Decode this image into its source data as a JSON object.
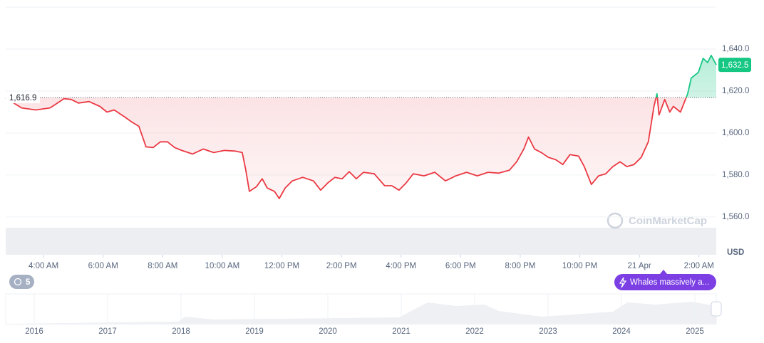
{
  "chart_data": {
    "type": "line",
    "x": [
      2.73,
      3.26,
      3.74,
      4.22,
      4.69,
      4.93,
      5.17,
      5.53,
      5.89,
      6.13,
      6.37,
      6.73,
      6.97,
      7.2,
      7.44,
      7.68,
      7.92,
      8.16,
      8.4,
      8.64,
      9.0,
      9.36,
      9.71,
      10.07,
      10.43,
      10.67,
      10.79,
      10.91,
      11.15,
      11.34,
      11.51,
      11.75,
      11.91,
      12.11,
      12.35,
      12.7,
      13.06,
      13.3,
      13.54,
      13.78,
      14.02,
      14.26,
      14.5,
      14.74,
      15.1,
      15.45,
      15.69,
      15.93,
      16.17,
      16.41,
      16.77,
      17.13,
      17.49,
      17.84,
      18.2,
      18.56,
      18.92,
      19.28,
      19.64,
      19.88,
      20.12,
      20.28,
      20.48,
      20.71,
      20.95,
      21.19,
      21.43,
      21.67,
      21.96,
      22.15,
      22.39,
      22.63,
      22.87,
      23.11,
      23.35,
      23.58,
      23.82,
      24.06,
      24.3,
      24.49,
      24.59,
      24.66,
      24.85,
      25.02,
      25.14,
      25.38,
      25.62,
      25.74,
      25.98,
      26.14,
      26.29,
      26.41,
      26.58
    ],
    "values": [
      1616.7,
      1612.0,
      1611.0,
      1612.0,
      1616.4,
      1616.0,
      1614.3,
      1615.0,
      1612.7,
      1610.0,
      1611.0,
      1607.6,
      1605.2,
      1603.2,
      1593.4,
      1593.1,
      1595.8,
      1595.8,
      1593.1,
      1591.7,
      1590.0,
      1592.4,
      1590.7,
      1591.7,
      1591.4,
      1590.7,
      1582.3,
      1572.2,
      1574.5,
      1578.2,
      1573.8,
      1572.2,
      1568.8,
      1573.8,
      1577.2,
      1578.9,
      1577.2,
      1572.8,
      1576.2,
      1578.9,
      1578.2,
      1581.6,
      1578.2,
      1581.3,
      1580.6,
      1574.9,
      1574.9,
      1572.8,
      1576.2,
      1580.6,
      1579.6,
      1581.3,
      1577.2,
      1579.6,
      1581.3,
      1579.6,
      1581.3,
      1580.9,
      1582.3,
      1586.3,
      1592.4,
      1598.1,
      1592.4,
      1590.7,
      1588.4,
      1587.3,
      1585.0,
      1589.7,
      1589.0,
      1584.0,
      1575.5,
      1579.6,
      1580.6,
      1584.0,
      1586.3,
      1584.0,
      1585.0,
      1588.4,
      1595.8,
      1612.7,
      1618.7,
      1608.6,
      1616.0,
      1610.0,
      1612.7,
      1610.0,
      1618.7,
      1626.2,
      1628.9,
      1635.6,
      1633.6,
      1637.0,
      1632.5
    ],
    "baseline": {
      "value": 1616.9,
      "label": "1,616.9"
    },
    "last_price": {
      "value": 1632.5,
      "label": "1,632.5"
    },
    "up_color": "#16c784",
    "down_color": "#ea3943",
    "xlim": [
      2.73,
      26.58
    ],
    "ylim": [
      1542,
      1660
    ],
    "xticks": [
      {
        "value": 4,
        "label": "4:00 AM"
      },
      {
        "value": 6,
        "label": "6:00 AM"
      },
      {
        "value": 8,
        "label": "8:00 AM"
      },
      {
        "value": 10,
        "label": "10:00 AM"
      },
      {
        "value": 12,
        "label": "12:00 PM"
      },
      {
        "value": 14,
        "label": "2:00 PM"
      },
      {
        "value": 16,
        "label": "4:00 PM"
      },
      {
        "value": 18,
        "label": "6:00 PM"
      },
      {
        "value": 20,
        "label": "8:00 PM"
      },
      {
        "value": 22,
        "label": "10:00 PM"
      },
      {
        "value": 24,
        "label": "21 Apr"
      },
      {
        "value": 26,
        "label": "2:00 AM"
      }
    ],
    "yticks": [
      {
        "value": 1560,
        "label": "1,560.0"
      },
      {
        "value": 1580,
        "label": "1,580.0"
      },
      {
        "value": 1600,
        "label": "1,600.0"
      },
      {
        "value": 1620,
        "label": "1,620.0"
      },
      {
        "value": 1640,
        "label": "1,640.0"
      }
    ],
    "grid": true,
    "y_unit": "USD",
    "watermark": "CoinMarketCap",
    "events_badge": "5",
    "news_badge": "Whales massively a...",
    "navigator_years": [
      "2016",
      "2017",
      "2018",
      "2019",
      "2020",
      "2021",
      "2022",
      "2023",
      "2024",
      "2025"
    ]
  }
}
